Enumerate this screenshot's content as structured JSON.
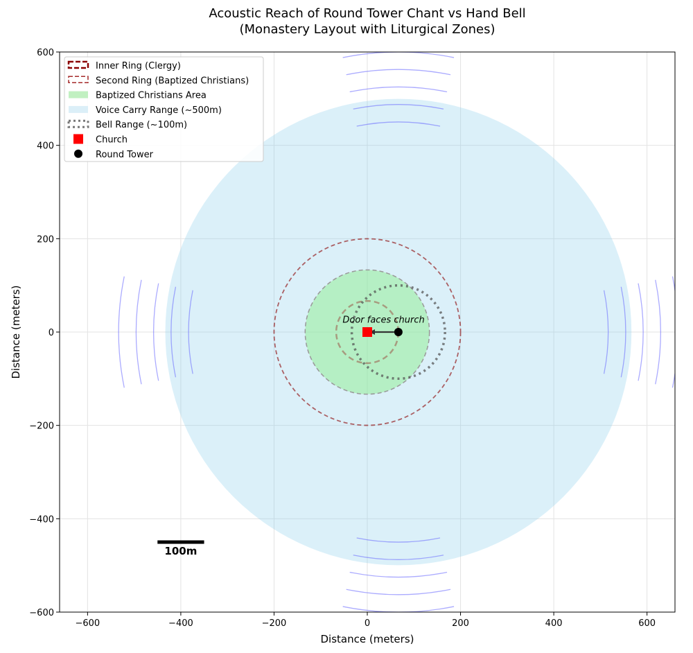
{
  "chart_data": {
    "type": "scatter",
    "title_line1": "Acoustic Reach of Round Tower Chant vs Hand Bell",
    "title_line2": "(Monastery Layout with Liturgical Zones)",
    "xlabel": "Distance (meters)",
    "ylabel": "Distance (meters)",
    "xlim": [
      -660,
      660
    ],
    "ylim": [
      -600,
      600
    ],
    "xticks": [
      -600,
      -400,
      -200,
      0,
      200,
      400,
      600
    ],
    "yticks": [
      -600,
      -400,
      -200,
      0,
      200,
      400,
      600
    ],
    "grid": true,
    "legend_position": "top-left",
    "church": {
      "x": 0,
      "y": 0,
      "color": "#ff0000"
    },
    "tower": {
      "x": 66.7,
      "y": 0,
      "color": "#000000"
    },
    "circles": [
      {
        "name": "Voice Carry Range (~500m)",
        "cx": 66.7,
        "cy": 0,
        "r": 500,
        "fill": "#87ceeb",
        "fill_opacity": 0.3,
        "stroke": "none"
      },
      {
        "name": "Baptized Christians Area",
        "cx": 0,
        "cy": 0,
        "r": 133.3,
        "fill": "#90ee90",
        "fill_opacity": 0.5,
        "stroke": "#999999",
        "dash": "6,4"
      },
      {
        "name": "Inner Ring (Clergy)",
        "cx": 0,
        "cy": 0,
        "r": 66.7,
        "fill": "none",
        "stroke": "#8b0000",
        "stroke_opacity": 0.35,
        "dash": "8,5",
        "width": 2.5
      },
      {
        "name": "Second Ring (Baptized Christians)",
        "cx": 0,
        "cy": 0,
        "r": 200,
        "fill": "none",
        "stroke": "#8b0000",
        "stroke_opacity": 0.6,
        "dash": "6,4",
        "width": 1.8
      },
      {
        "name": "Bell Range (~100m)",
        "cx": 66.7,
        "cy": 0,
        "r": 100,
        "fill": "none",
        "stroke": "#555555",
        "stroke_opacity": 0.75,
        "dash": "3,5",
        "width": 3.5
      }
    ],
    "sound_waves": {
      "center": [
        66.7,
        0
      ],
      "radii": [
        450,
        487.5,
        525,
        562.5,
        600
      ],
      "half_angle_rad": 0.2,
      "directions_deg": [
        90,
        270,
        180,
        0
      ],
      "color": "#6666ff"
    },
    "annotation": {
      "text": "Door faces church",
      "from": [
        66.7,
        0
      ],
      "to": [
        0,
        0
      ],
      "text_at": [
        35,
        20
      ]
    },
    "scale_bar": {
      "x0": -450,
      "x1": -350,
      "y": -450,
      "label": "100m"
    },
    "legend": [
      {
        "label": "Inner Ring (Clergy)",
        "kind": "dashbox-thick",
        "color": "#8b0000"
      },
      {
        "label": "Second Ring (Baptized Christians)",
        "kind": "dashbox",
        "color": "#a52a2a"
      },
      {
        "label": "Baptized Christians Area",
        "kind": "patch",
        "color": "#c1f0c1"
      },
      {
        "label": "Voice Carry Range (~500m)",
        "kind": "patch",
        "color": "#dbeff8"
      },
      {
        "label": "Bell Range (~100m)",
        "kind": "dotbox",
        "color": "#777777"
      },
      {
        "label": "Church",
        "kind": "square",
        "color": "#ff0000"
      },
      {
        "label": "Round Tower",
        "kind": "dot",
        "color": "#000000"
      }
    ]
  }
}
